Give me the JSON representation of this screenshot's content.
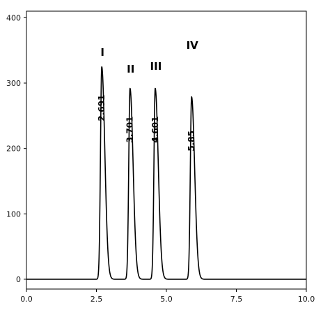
{
  "chart_data": {
    "type": "line",
    "title": "",
    "xlabel": "",
    "ylabel": "",
    "xlim": [
      0.0,
      10.0
    ],
    "ylim": [
      -15,
      410
    ],
    "x_ticks": [
      0.0,
      2.5,
      5.0,
      7.5,
      10.0
    ],
    "x_tick_labels": [
      "0.0",
      "2.5",
      "5.0",
      "7.5",
      "10.0"
    ],
    "y_ticks": [
      0,
      100,
      200,
      300,
      400
    ],
    "y_tick_labels": [
      "0",
      "100",
      "200",
      "300",
      "400"
    ],
    "grid": false,
    "baseline": 0,
    "peaks": [
      {
        "label": "I",
        "retention_time": 2.69,
        "retention_label": "2.691",
        "height": 325
      },
      {
        "label": "II",
        "retention_time": 3.7,
        "retention_label": "3.701",
        "height": 292
      },
      {
        "label": "III",
        "retention_time": 4.6,
        "retention_label": "4.601",
        "height": 292
      },
      {
        "label": "IV",
        "retention_time": 5.9,
        "retention_label": "5.85",
        "height": 279
      }
    ],
    "color": "#000000"
  }
}
